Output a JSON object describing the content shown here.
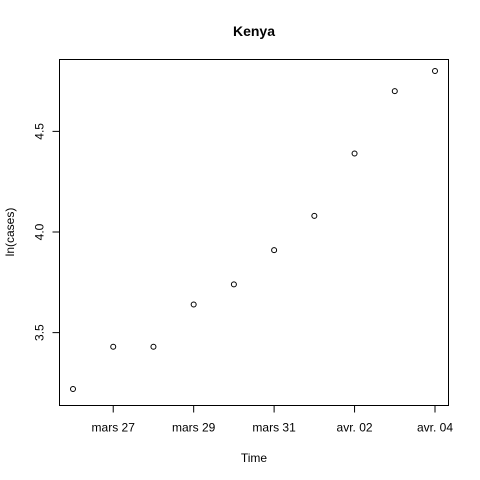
{
  "chart_data": {
    "type": "scatter",
    "title": "Kenya",
    "xlabel": "Time",
    "ylabel": "ln(cases)",
    "x": [
      "2020-03-26",
      "2020-03-27",
      "2020-03-28",
      "2020-03-29",
      "2020-03-30",
      "2020-03-31",
      "2020-04-01",
      "2020-04-02",
      "2020-04-03",
      "2020-04-04"
    ],
    "y": [
      3.22,
      3.43,
      3.43,
      3.64,
      3.74,
      3.91,
      4.08,
      4.39,
      4.7,
      4.8
    ],
    "xlim": [
      "2020-03-26",
      "2020-04-04"
    ],
    "ylim": [
      3.2,
      4.8
    ],
    "x_ticks": [
      {
        "date": "2020-03-27",
        "label": "mars 27"
      },
      {
        "date": "2020-03-29",
        "label": "mars 29"
      },
      {
        "date": "2020-03-31",
        "label": "mars 31"
      },
      {
        "date": "2020-04-02",
        "label": "avr. 02"
      },
      {
        "date": "2020-04-04",
        "label": "avr. 04"
      }
    ],
    "y_ticks": [
      {
        "value": 3.5,
        "label": "3.5"
      },
      {
        "value": 4.0,
        "label": "4.0"
      },
      {
        "value": 4.5,
        "label": "4.5"
      }
    ],
    "grid": false,
    "legend": "none"
  }
}
